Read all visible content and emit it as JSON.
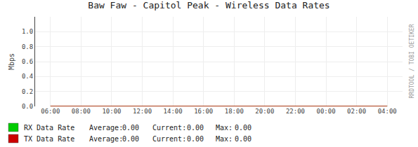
{
  "chart_data": {
    "type": "line",
    "title": "Baw Faw - Capitol Peak - Wireless Data Rates",
    "y_label": "Mbps",
    "categories": [
      "06:00",
      "08:00",
      "10:00",
      "12:00",
      "14:00",
      "16:00",
      "18:00",
      "20:00",
      "22:00",
      "00:00",
      "02:00",
      "04:00"
    ],
    "series": [
      {
        "name": "RX Data Rate",
        "color": "#00cc00",
        "values": [
          0.0,
          0.0,
          0.0,
          0.0,
          0.0,
          0.0,
          0.0,
          0.0,
          0.0,
          0.0,
          0.0,
          0.0
        ],
        "stats": [
          {
            "value": 0.0,
            "label": "0.00"
          },
          {
            "value": 0.0,
            "label": "0.00"
          },
          {
            "value": 0.0,
            "label": "0.00"
          }
        ]
      },
      {
        "name": "TX Data Rate",
        "color": "#cc0000",
        "values": [
          0.0,
          0.0,
          0.0,
          0.0,
          0.0,
          0.0,
          0.0,
          0.0,
          0.0,
          0.0,
          0.0,
          0.0
        ],
        "stats": [
          {
            "value": 0.0,
            "label": "0.00"
          },
          {
            "value": 0.0,
            "label": "0.00"
          },
          {
            "value": 0.0,
            "label": "0.00"
          }
        ]
      }
    ],
    "stats_labels": [
      "Average:",
      "Current:",
      "Max:"
    ],
    "ylim": [
      0.0,
      1.2
    ],
    "yticks": [
      {
        "value": 0.0,
        "label": "0.0"
      },
      {
        "value": 0.2,
        "label": "0.2"
      },
      {
        "value": 0.4,
        "label": "0.4"
      },
      {
        "value": 0.6,
        "label": "0.6"
      },
      {
        "value": 0.8,
        "label": "0.8"
      },
      {
        "value": 1.0,
        "label": "1.0"
      }
    ],
    "grid": true,
    "legend": "bottom",
    "annotations": [
      "RRDTOOL / TOBI OETIKER"
    ]
  }
}
